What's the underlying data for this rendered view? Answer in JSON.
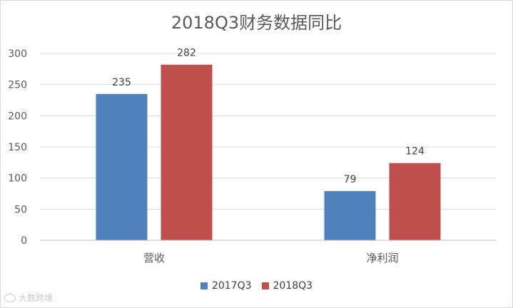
{
  "chart_data": {
    "type": "bar",
    "title": "2018Q3财务数据同比",
    "categories": [
      "营收",
      "净利润"
    ],
    "series": [
      {
        "name": "2017Q3",
        "values": [
          235,
          79
        ],
        "color": "#4f81bd"
      },
      {
        "name": "2018Q3",
        "values": [
          282,
          124
        ],
        "color": "#c0504d"
      }
    ],
    "ylim": [
      0,
      300
    ],
    "yticks": [
      0,
      50,
      100,
      150,
      200,
      250,
      300
    ],
    "grid": true,
    "legend": "bottom",
    "data_labels": true
  },
  "watermark": {
    "text": "大数跨境",
    "icon": "logo-icon"
  }
}
